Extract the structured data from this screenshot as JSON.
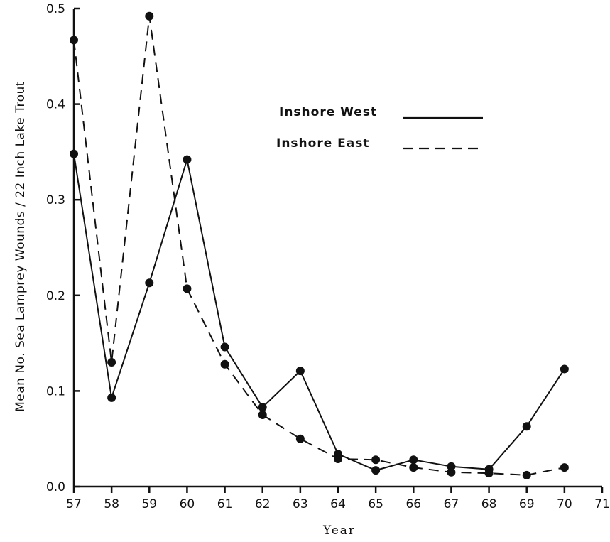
{
  "chart_data": {
    "type": "line",
    "xlabel": "Year",
    "ylabel": "Mean No. Sea Lamprey Wounds / 22 Inch Lake Trout",
    "xlim": [
      57,
      71
    ],
    "ylim": [
      0,
      0.5
    ],
    "x_ticks": [
      "57",
      "58",
      "59",
      "60",
      "61",
      "62",
      "63",
      "64",
      "65",
      "66",
      "67",
      "68",
      "69",
      "70",
      "71"
    ],
    "y_ticks": [
      "0.0",
      "0.1",
      "0.2",
      "0.3",
      "0.4",
      "0.5"
    ],
    "legend_position": "top-right",
    "grid": false,
    "series": [
      {
        "name": "Inshore West",
        "line_style": "solid",
        "x": [
          57,
          58,
          59,
          60,
          61,
          62,
          63,
          64,
          65,
          66,
          67,
          68,
          69,
          70
        ],
        "y": [
          0.348,
          0.093,
          0.213,
          0.342,
          0.146,
          0.083,
          0.121,
          0.034,
          0.017,
          0.028,
          0.021,
          0.018,
          0.063,
          0.123
        ]
      },
      {
        "name": "Inshore East",
        "line_style": "dashed",
        "x": [
          57,
          58,
          59,
          60,
          61,
          62,
          63,
          64,
          65,
          66,
          67,
          68,
          69,
          70
        ],
        "y": [
          0.467,
          0.13,
          0.492,
          0.207,
          0.128,
          0.075,
          0.05,
          0.029,
          0.028,
          0.02,
          0.015,
          0.014,
          0.012,
          0.02
        ]
      }
    ]
  }
}
